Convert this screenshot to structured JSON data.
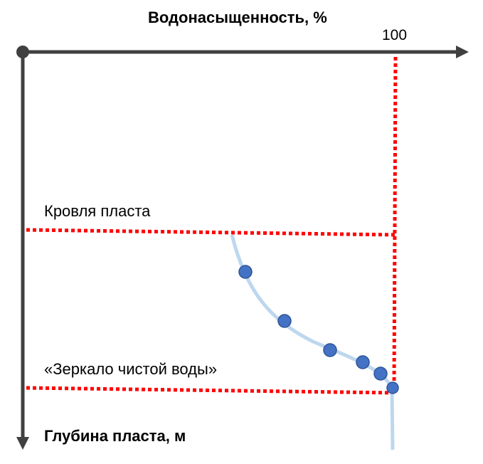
{
  "axes": {
    "x_title": "Водонасыщенность, %",
    "x_tick": "100",
    "y_title": "Глубина пласта, м"
  },
  "annotations": {
    "roof": "Кровля пласта",
    "mirror": "«Зеркало чистой воды»"
  },
  "colors": {
    "axis": "#404040",
    "guide": "#ff0000",
    "curve": "#bdd7ee",
    "point": "#4472c4",
    "point_stroke": "#2f5597"
  }
}
